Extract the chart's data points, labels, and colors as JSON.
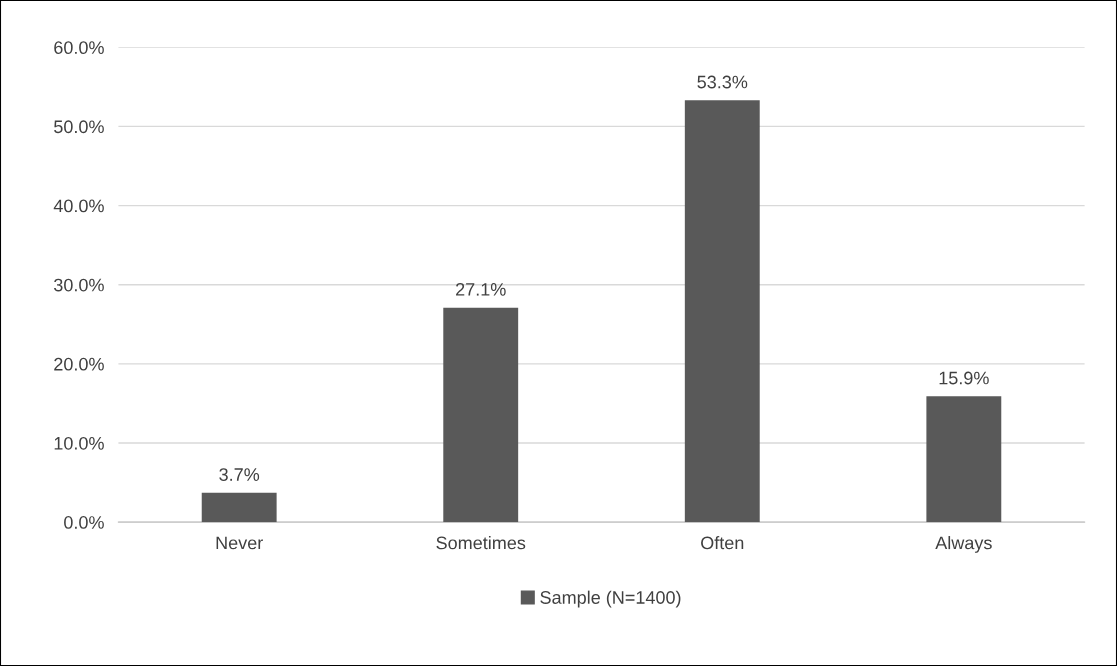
{
  "chart_data": {
    "type": "bar",
    "categories": [
      "Never",
      "Sometimes",
      "Often",
      "Always"
    ],
    "series": [
      {
        "name": "Sample (N=1400)",
        "color": "#595959",
        "values": [
          3.7,
          27.1,
          53.3,
          15.9
        ],
        "value_labels": [
          "3.7%",
          "27.1%",
          "53.3%",
          "15.9%"
        ]
      }
    ],
    "ylim": [
      0,
      60
    ],
    "yticks": [
      {
        "value": 0,
        "label": "0.0%"
      },
      {
        "value": 10,
        "label": "10.0%"
      },
      {
        "value": 20,
        "label": "20.0%"
      },
      {
        "value": 30,
        "label": "30.0%"
      },
      {
        "value": 40,
        "label": "40.0%"
      },
      {
        "value": 50,
        "label": "50.0%"
      },
      {
        "value": 60,
        "label": "60.0%"
      }
    ],
    "grid": "y",
    "legend": "bottom"
  }
}
